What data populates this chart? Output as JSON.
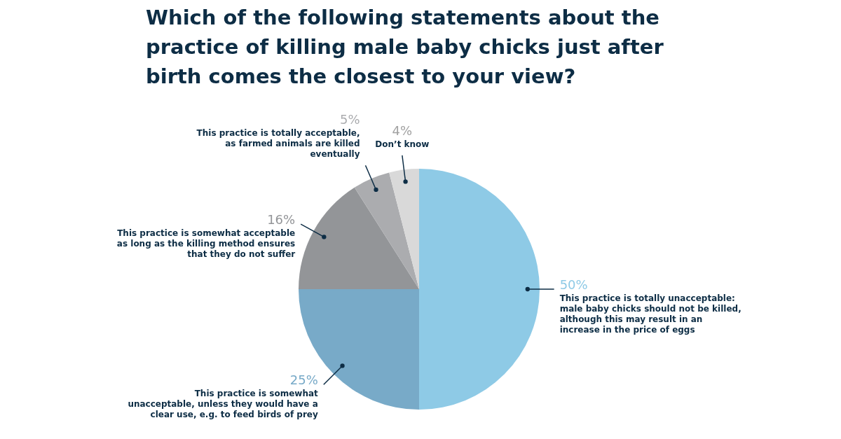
{
  "chart_data": {
    "type": "pie",
    "title": "Which of the following statements about the practice of killing male baby chicks just after birth comes the closest to your view?",
    "categories": [
      "This practice is totally unacceptable: male baby chicks should not be killed, although this may result in an increase in the price of eggs",
      "This practice is somewhat unacceptable, unless they would have a clear use, e.g. to feed birds of prey",
      "This practice is somewhat acceptable as long as the killing method ensures that they do not suffer",
      "This practice is totally acceptable, as farmed animals are killed eventually",
      "Don’t know"
    ],
    "values": [
      50,
      25,
      16,
      5,
      4
    ],
    "value_labels": [
      "50%",
      "25%",
      "16%",
      "5%",
      "4%"
    ],
    "colors": [
      "#8ecae6",
      "#78aac8",
      "#939598",
      "#abacaf",
      "#d9d9d9"
    ]
  }
}
